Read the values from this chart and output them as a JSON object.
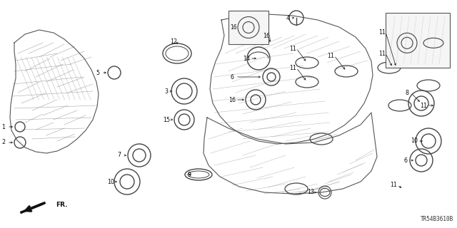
{
  "bg_color": "#ffffff",
  "line_color": "#222222",
  "catalog_num": "TR54B3610B",
  "figsize": [
    6.4,
    3.2
  ],
  "dpi": 100
}
